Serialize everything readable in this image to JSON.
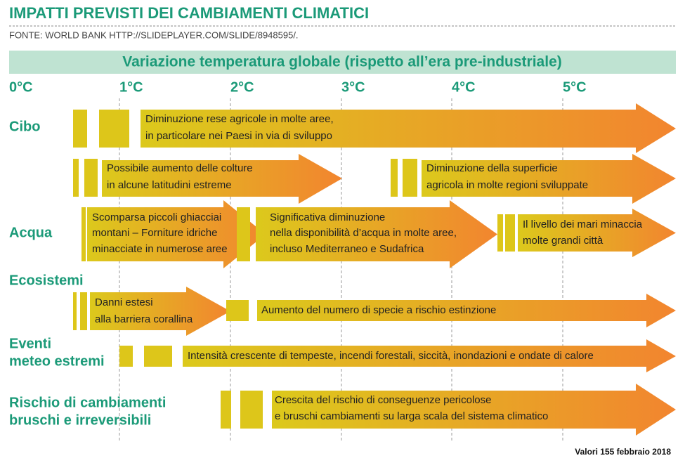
{
  "header": {
    "title": "IMPATTI PREVISTI DEI CAMBIAMENTI CLIMATICI",
    "source": "FONTE: WORLD BANK HTTP://SLIDEPLAYER.COM/SLIDE/8948595/."
  },
  "scale": {
    "title": "Variazione temperatura globale (rispetto all’era pre-industriale)",
    "labels": [
      "0°C",
      "1°C",
      "2°C",
      "3°C",
      "4°C",
      "5°C"
    ]
  },
  "rows": [
    {
      "lines": [
        "Cibo"
      ]
    },
    {
      "lines": [
        "Acqua"
      ]
    },
    {
      "lines": [
        "Ecosistemi"
      ]
    },
    {
      "lines": [
        "Eventi",
        "meteo estremi"
      ]
    },
    {
      "lines": [
        "Rischio di cambiamenti",
        "bruschi e irreversibili"
      ]
    }
  ],
  "impacts": [
    {
      "lines": [
        "Diminuzione rese agricole in molte aree,",
        "in particolare nei Paesi in via di sviluppo"
      ]
    },
    {
      "lines": [
        "Possibile aumento delle colture",
        "in alcune latitudini estreme"
      ]
    },
    {
      "lines": [
        "Diminuzione della superficie",
        "agricola in molte regioni sviluppate"
      ]
    },
    {
      "lines": [
        "Scomparsa piccoli ghiacciai",
        "montani – Forniture idriche",
        "minacciate in numerose aree"
      ]
    },
    {
      "lines": [
        "Significativa diminuzione",
        "nella disponibilità d’acqua in molte aree,",
        "incluso Mediterraneo e Sudafrica"
      ]
    },
    {
      "lines": [
        "Il livello dei mari minaccia",
        "molte grandi città"
      ]
    },
    {
      "lines": [
        "Danni estesi",
        "alla barriera corallina"
      ]
    },
    {
      "lines": [
        "Aumento del numero di specie a rischio estinzione"
      ]
    },
    {
      "lines": [
        "Intensità crescente di tempeste, incendi forestali, siccità, inondazioni e ondate di calore"
      ]
    },
    {
      "lines": [
        "Crescita del rischio di conseguenze pericolose",
        "e bruschi cambiamenti su larga scala del sistema climatico"
      ]
    }
  ],
  "footer": "Valori 155 febbraio 2018"
}
